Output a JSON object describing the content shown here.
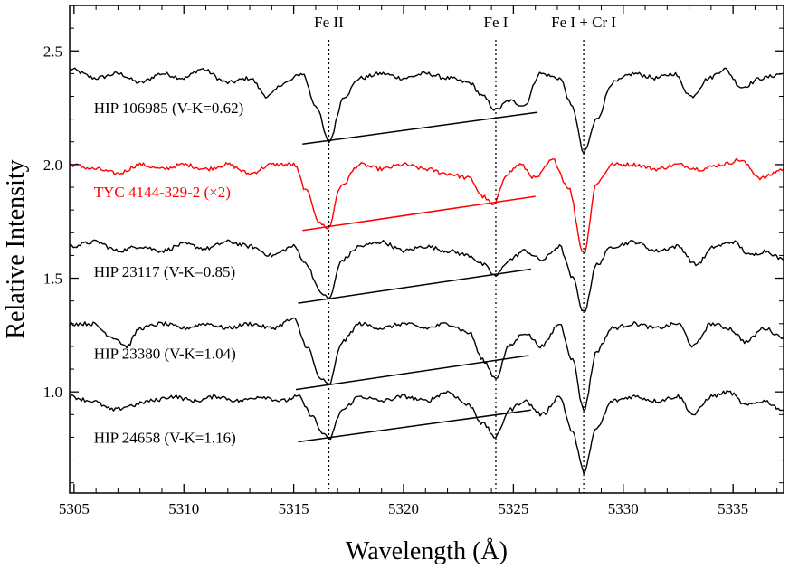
{
  "chart_data": {
    "type": "line",
    "title": "",
    "xlabel": "Wavelength (Å)",
    "ylabel": "Relative Intensity",
    "xlim": [
      5304.8,
      5337.3
    ],
    "ylim": [
      0.555,
      2.7
    ],
    "xticks": [
      5305,
      5310,
      5315,
      5320,
      5325,
      5330,
      5335
    ],
    "yticks": [
      1.0,
      1.5,
      2.0,
      2.5
    ],
    "xtick_labels": [
      "5305",
      "5310",
      "5315",
      "5320",
      "5325",
      "5330",
      "5335"
    ],
    "ytick_labels": [
      "1.0",
      "1.5",
      "2.0",
      "2.5"
    ],
    "line_markers": [
      {
        "label": "Fe II",
        "x": 5316.6
      },
      {
        "label": "Fe I",
        "x": 5324.2
      },
      {
        "label": "Fe I + Cr I",
        "x": 5328.2
      }
    ],
    "series": [
      {
        "name": "HIP 106985 (V-K=0.62)",
        "color": "#000000",
        "label_at": [
          5305.9,
          2.25
        ],
        "baseline": 2.38,
        "x": [
          5304.8,
          5306,
          5307,
          5308,
          5309,
          5310,
          5310.8,
          5312,
          5313,
          5313.8,
          5314.6,
          5315.4,
          5316.0,
          5316.6,
          5317.3,
          5318,
          5319,
          5320,
          5321,
          5322,
          5323,
          5323.6,
          5324.2,
          5324.8,
          5325.5,
          5326.2,
          5327.1,
          5327.7,
          5328.2,
          5328.8,
          5329.5,
          5330.5,
          5331.5,
          5332.3,
          5333.1,
          5333.9,
          5334.6,
          5335.4,
          5336.3,
          5337.3
        ],
        "y": [
          2.42,
          2.38,
          2.4,
          2.36,
          2.4,
          2.38,
          2.42,
          2.36,
          2.38,
          2.3,
          2.36,
          2.4,
          2.26,
          2.1,
          2.3,
          2.38,
          2.4,
          2.38,
          2.4,
          2.38,
          2.36,
          2.3,
          2.24,
          2.28,
          2.26,
          2.4,
          2.38,
          2.25,
          2.05,
          2.2,
          2.36,
          2.4,
          2.38,
          2.4,
          2.3,
          2.38,
          2.42,
          2.34,
          2.38,
          2.4
        ]
      },
      {
        "name": "TYC 4144-329-2 (×2)",
        "color": "#ff0000",
        "label_at": [
          5305.9,
          1.88
        ],
        "baseline": 1.99,
        "x": [
          5304.8,
          5306,
          5307,
          5308,
          5309,
          5310,
          5311,
          5312,
          5313,
          5314,
          5315,
          5315.6,
          5316.2,
          5316.6,
          5317.1,
          5318,
          5319,
          5320,
          5321,
          5322,
          5323,
          5323.6,
          5324.1,
          5324.7,
          5325.3,
          5326,
          5326.8,
          5327.5,
          5328.2,
          5328.8,
          5329.5,
          5330.5,
          5331.5,
          5332.5,
          5333.5,
          5334.5,
          5335.3,
          5336.3,
          5337.3
        ],
        "y": [
          2.0,
          1.98,
          1.96,
          2.0,
          1.98,
          2.0,
          1.98,
          2.0,
          1.96,
          2.0,
          2.0,
          1.88,
          1.74,
          1.72,
          1.9,
          2.0,
          1.98,
          2.0,
          1.98,
          1.96,
          1.94,
          1.86,
          1.82,
          1.96,
          2.0,
          1.94,
          2.02,
          1.9,
          1.61,
          1.92,
          2.0,
          2.0,
          1.98,
          2.0,
          1.98,
          2.0,
          2.02,
          1.94,
          1.98
        ]
      },
      {
        "name": "HIP 23117 (V-K=0.85)",
        "color": "#000000",
        "label_at": [
          5305.9,
          1.53
        ],
        "baseline": 1.65,
        "x": [
          5304.8,
          5306,
          5307,
          5308,
          5309,
          5310,
          5311,
          5312,
          5313,
          5314,
          5315,
          5315.6,
          5316.2,
          5316.6,
          5317.2,
          5318,
          5319,
          5320,
          5321,
          5322,
          5323,
          5323.6,
          5324.2,
          5324.8,
          5325.5,
          5326.3,
          5327.1,
          5327.7,
          5328.2,
          5328.8,
          5329.5,
          5330.5,
          5331.5,
          5332.5,
          5333.3,
          5334.2,
          5335.0,
          5335.8,
          5336.5,
          5337.3
        ],
        "y": [
          1.64,
          1.66,
          1.62,
          1.64,
          1.62,
          1.65,
          1.63,
          1.66,
          1.64,
          1.6,
          1.64,
          1.56,
          1.44,
          1.41,
          1.58,
          1.64,
          1.66,
          1.62,
          1.64,
          1.62,
          1.6,
          1.56,
          1.51,
          1.58,
          1.62,
          1.58,
          1.64,
          1.5,
          1.35,
          1.56,
          1.64,
          1.66,
          1.62,
          1.64,
          1.56,
          1.64,
          1.66,
          1.6,
          1.62,
          1.58
        ]
      },
      {
        "name": "HIP 23380 (V-K=1.04)",
        "color": "#000000",
        "label_at": [
          5305.9,
          1.17
        ],
        "baseline": 1.29,
        "x": [
          5304.8,
          5305.8,
          5306.8,
          5307.4,
          5308,
          5309,
          5310,
          5311,
          5312,
          5313,
          5314,
          5315,
          5315.6,
          5316.2,
          5316.6,
          5317.2,
          5318,
          5319,
          5320,
          5321,
          5322,
          5323,
          5323.6,
          5324.2,
          5324.8,
          5325.5,
          5326.3,
          5327.1,
          5327.7,
          5328.2,
          5328.8,
          5329.5,
          5330.5,
          5331.5,
          5332.5,
          5333.2,
          5334.0,
          5334.8,
          5335.6,
          5336.4,
          5337.3
        ],
        "y": [
          1.3,
          1.3,
          1.24,
          1.2,
          1.28,
          1.3,
          1.28,
          1.3,
          1.28,
          1.3,
          1.28,
          1.32,
          1.2,
          1.06,
          1.03,
          1.22,
          1.3,
          1.28,
          1.3,
          1.28,
          1.3,
          1.26,
          1.14,
          1.06,
          1.2,
          1.26,
          1.2,
          1.3,
          1.14,
          0.92,
          1.18,
          1.28,
          1.3,
          1.28,
          1.3,
          1.2,
          1.3,
          1.28,
          1.22,
          1.28,
          1.24
        ]
      },
      {
        "name": "HIP 24658 (V-K=1.16)",
        "color": "#000000",
        "label_at": [
          5305.9,
          0.8
        ],
        "baseline": 0.95,
        "x": [
          5304.8,
          5305.8,
          5306.8,
          5307.6,
          5308.5,
          5309.5,
          5310.5,
          5311.5,
          5312.5,
          5313.5,
          5314.5,
          5315.2,
          5315.8,
          5316.3,
          5316.6,
          5317.2,
          5318,
          5319,
          5320,
          5321,
          5322,
          5323,
          5323.6,
          5324.2,
          5324.8,
          5325.5,
          5326.3,
          5327.1,
          5327.7,
          5328.2,
          5328.8,
          5329.5,
          5330.5,
          5331.5,
          5332.5,
          5333.2,
          5334.0,
          5334.8,
          5335.6,
          5336.4,
          5337.3
        ],
        "y": [
          0.98,
          0.96,
          0.92,
          0.94,
          0.96,
          0.98,
          0.96,
          0.98,
          0.96,
          0.98,
          0.96,
          0.98,
          0.9,
          0.82,
          0.79,
          0.92,
          0.98,
          0.96,
          0.98,
          0.96,
          1.0,
          0.94,
          0.86,
          0.8,
          0.92,
          0.96,
          0.9,
          0.98,
          0.82,
          0.65,
          0.84,
          0.96,
          0.98,
          0.96,
          0.98,
          0.9,
          0.98,
          1.0,
          0.94,
          0.96,
          0.92
        ]
      }
    ],
    "trend_lines": [
      {
        "color": "#000000",
        "from": [
          5315.4,
          2.09
        ],
        "to": [
          5326.1,
          2.23
        ]
      },
      {
        "color": "#ff0000",
        "from": [
          5315.4,
          1.71
        ],
        "to": [
          5326.0,
          1.86
        ]
      },
      {
        "color": "#000000",
        "from": [
          5315.2,
          1.39
        ],
        "to": [
          5325.8,
          1.54
        ]
      },
      {
        "color": "#000000",
        "from": [
          5315.1,
          1.01
        ],
        "to": [
          5325.7,
          1.16
        ]
      },
      {
        "color": "#000000",
        "from": [
          5315.2,
          0.78
        ],
        "to": [
          5325.8,
          0.92
        ]
      }
    ],
    "grid": false,
    "legend": "none"
  }
}
